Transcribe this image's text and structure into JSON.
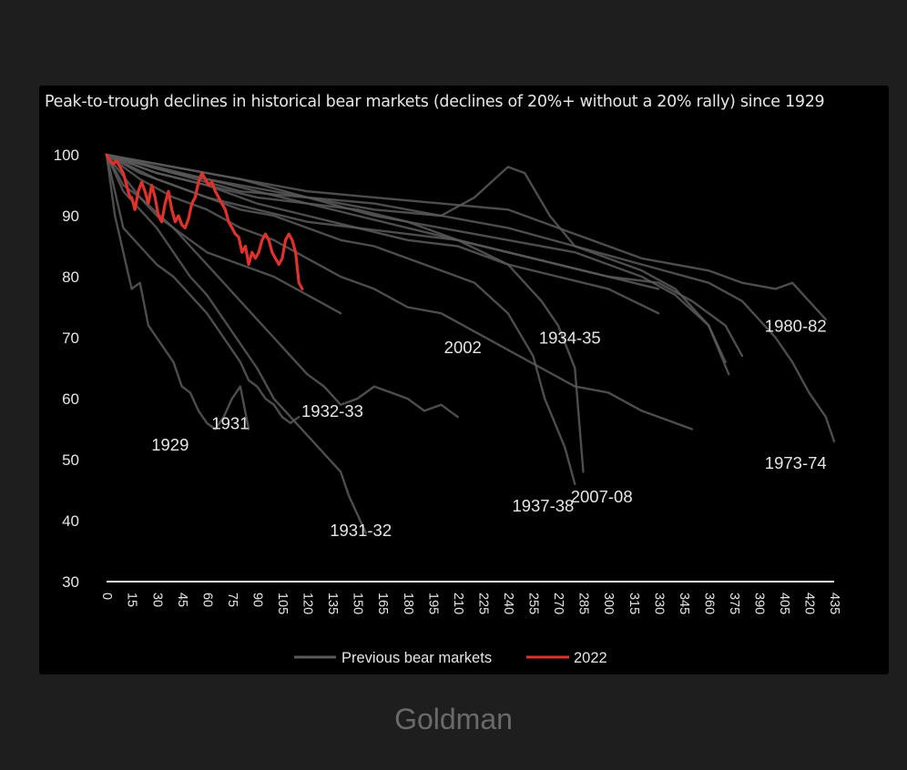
{
  "source": "Goldman",
  "chart_data": {
    "type": "line",
    "title": "Peak-to-trough declines in historical bear markets (declines of 20%+ without a 20% rally) since 1929",
    "xlabel": "",
    "ylabel": "",
    "ylim": [
      30,
      100
    ],
    "xlim": [
      0,
      435
    ],
    "grid": false,
    "legend_position": "bottom-center",
    "y_ticks": [
      "100",
      "90",
      "80",
      "70",
      "60",
      "50",
      "40",
      "30"
    ],
    "x_ticks": [
      "0",
      "15",
      "30",
      "45",
      "60",
      "75",
      "90",
      "105",
      "120",
      "135",
      "150",
      "165",
      "180",
      "195",
      "210",
      "225",
      "240",
      "255",
      "270",
      "285",
      "300",
      "315",
      "330",
      "345",
      "360",
      "375",
      "390",
      "405",
      "420",
      "435"
    ],
    "legend": [
      {
        "label": "Previous bear markets",
        "color": "#5a5a5a"
      },
      {
        "label": "2022",
        "color": "#e0312a"
      }
    ],
    "series": [
      {
        "name": "1929",
        "color": "#5a5a5a",
        "label_pos": [
          38,
          51.5
        ],
        "x": [
          0,
          5,
          10,
          15,
          20,
          25,
          30,
          35,
          40,
          45,
          50,
          55,
          60,
          65,
          70,
          75,
          80,
          85
        ],
        "y": [
          100,
          90,
          84,
          78,
          79,
          72,
          70,
          68,
          66,
          62,
          61,
          58,
          56,
          55,
          57,
          60,
          62,
          55
        ]
      },
      {
        "name": "1931",
        "color": "#5a5a5a",
        "label_pos": [
          74,
          55
        ],
        "x": [
          0,
          10,
          20,
          30,
          40,
          50,
          60,
          65,
          70,
          75,
          80,
          85,
          90,
          95,
          100,
          105,
          110,
          115
        ],
        "y": [
          100,
          88,
          85,
          82,
          80,
          77,
          74,
          72,
          70,
          68,
          66,
          63,
          62,
          60,
          59,
          57,
          56,
          57
        ]
      },
      {
        "name": "1932-33",
        "color": "#5a5a5a",
        "label_pos": [
          135,
          57
        ],
        "x": [
          0,
          10,
          20,
          30,
          40,
          50,
          60,
          70,
          80,
          90,
          100,
          110,
          120,
          130,
          140,
          150,
          160,
          170,
          180,
          190,
          200,
          210
        ],
        "y": [
          100,
          95,
          93,
          90,
          88,
          85,
          82,
          79,
          76,
          73,
          70,
          67,
          64,
          62,
          59,
          60,
          62,
          61,
          60,
          58,
          59,
          57
        ]
      },
      {
        "name": "1931-32",
        "color": "#5a5a5a",
        "label_pos": [
          152,
          37.5
        ],
        "x": [
          0,
          10,
          20,
          30,
          40,
          50,
          60,
          70,
          80,
          90,
          100,
          110,
          120,
          130,
          140,
          145,
          150,
          155
        ],
        "y": [
          100,
          94,
          91,
          88,
          84,
          80,
          77,
          73,
          69,
          65,
          60,
          57,
          54,
          51,
          48,
          44,
          41,
          38
        ]
      },
      {
        "name": "2002",
        "color": "#5a5a5a",
        "label_pos": [
          213,
          67.5
        ],
        "x": [
          0,
          20,
          40,
          60,
          80,
          100,
          120,
          140,
          160,
          180,
          200,
          220,
          240,
          260,
          280,
          300,
          320,
          340,
          350
        ],
        "y": [
          100,
          96,
          93,
          91,
          88,
          86,
          83,
          80,
          78,
          75,
          74,
          71,
          68,
          65,
          62,
          61,
          58,
          56,
          55
        ]
      },
      {
        "name": "1934-35",
        "color": "#5a5a5a",
        "label_pos": [
          277,
          69
        ],
        "x": [
          0,
          30,
          60,
          90,
          120,
          150,
          180,
          210,
          240,
          270,
          300,
          330,
          350,
          370,
          380
        ],
        "y": [
          100,
          96,
          93,
          91,
          89,
          88,
          87,
          86,
          84,
          82,
          80,
          79,
          76,
          72,
          67
        ]
      },
      {
        "name": "1937-38",
        "color": "#5a5a5a",
        "label_pos": [
          261,
          41.5
        ],
        "x": [
          0,
          20,
          40,
          60,
          80,
          100,
          120,
          140,
          160,
          180,
          200,
          220,
          240,
          255,
          262,
          268,
          274,
          280
        ],
        "y": [
          100,
          97,
          95,
          93,
          91,
          90,
          88,
          86,
          85,
          83,
          81,
          79,
          74,
          67,
          60,
          56,
          52,
          46
        ]
      },
      {
        "name": "2007-08",
        "color": "#5a5a5a",
        "label_pos": [
          296,
          43
        ],
        "x": [
          0,
          30,
          60,
          90,
          120,
          150,
          180,
          210,
          240,
          260,
          270,
          280,
          285
        ],
        "y": [
          100,
          97,
          95,
          93,
          92,
          90,
          88,
          86,
          82,
          76,
          72,
          65,
          48
        ]
      },
      {
        "name": "1973-74",
        "color": "#5a5a5a",
        "label_pos": [
          412,
          48.5
        ],
        "x": [
          0,
          40,
          80,
          120,
          160,
          200,
          240,
          280,
          320,
          360,
          380,
          400,
          410,
          420,
          430,
          435
        ],
        "y": [
          100,
          98,
          96,
          93,
          92,
          90,
          88,
          85,
          82,
          79,
          76,
          70,
          66,
          61,
          57,
          53
        ]
      },
      {
        "name": "1980-82",
        "color": "#5a5a5a",
        "label_pos": [
          412,
          71
        ],
        "x": [
          0,
          40,
          80,
          120,
          160,
          200,
          240,
          280,
          320,
          360,
          380,
          400,
          410,
          420,
          430
        ],
        "y": [
          100,
          98,
          96,
          94,
          93,
          92,
          91,
          87,
          83,
          81,
          79,
          78,
          79,
          76,
          73
        ]
      },
      {
        "name": "",
        "color": "#5a5a5a",
        "x": [
          0,
          40,
          80,
          120,
          160,
          200,
          220,
          240,
          250,
          265,
          280,
          300,
          320,
          340,
          360,
          372
        ],
        "y": [
          100,
          97,
          95,
          93,
          91,
          90,
          93,
          98,
          97,
          90,
          85,
          83,
          81,
          78,
          72,
          64
        ]
      },
      {
        "name": "",
        "color": "#5a5a5a",
        "x": [
          0,
          40,
          80,
          120,
          160,
          200,
          240,
          280,
          300,
          320,
          340,
          360,
          370
        ],
        "y": [
          100,
          97,
          94,
          93,
          90,
          88,
          86,
          84,
          82,
          80,
          77,
          72,
          66
        ]
      },
      {
        "name": "",
        "color": "#5a5a5a",
        "x": [
          0,
          30,
          60,
          90,
          120,
          150,
          180,
          210,
          240,
          270,
          300,
          330
        ],
        "y": [
          100,
          97,
          95,
          92,
          90,
          88,
          86,
          85,
          82,
          80,
          78,
          74
        ]
      },
      {
        "name": "",
        "color": "#5a5a5a",
        "x": [
          0,
          30,
          60,
          90,
          120,
          150,
          180,
          210,
          240,
          270,
          300,
          330
        ],
        "y": [
          100,
          98,
          96,
          94,
          92,
          91,
          89,
          86,
          84,
          82,
          80,
          78
        ]
      },
      {
        "name": "",
        "color": "#5a5a5a",
        "x": [
          0,
          20,
          40,
          60,
          80,
          100,
          120,
          140
        ],
        "y": [
          100,
          93,
          88,
          84,
          82,
          80,
          77,
          74
        ]
      },
      {
        "name": "2022",
        "color": "#e0312a",
        "x": [
          0,
          2,
          4,
          6,
          8,
          10,
          12,
          14,
          15,
          17,
          19,
          21,
          23,
          25,
          27,
          29,
          31,
          33,
          35,
          37,
          39,
          41,
          43,
          45,
          47,
          49,
          51,
          53,
          55,
          57,
          59,
          61,
          63,
          65,
          67,
          69,
          71,
          73,
          75,
          77,
          79,
          81,
          83,
          85,
          87,
          89,
          91,
          93,
          95,
          97,
          99,
          101,
          103,
          105,
          107,
          109,
          111,
          113,
          115,
          117
        ],
        "y": [
          100,
          99,
          98.5,
          99,
          98,
          97,
          95,
          93,
          93,
          91,
          94,
          95.5,
          94,
          92,
          95,
          93,
          90,
          89,
          92,
          94,
          91,
          89,
          90,
          88.5,
          88,
          89.5,
          92,
          93,
          95.5,
          97,
          96,
          95,
          95.5,
          94,
          93,
          92,
          91,
          89,
          88,
          87,
          86.5,
          84,
          85,
          82,
          84,
          83,
          84,
          86,
          87,
          86,
          84,
          83,
          82,
          83,
          86,
          87,
          86,
          84,
          79,
          78
        ]
      }
    ]
  }
}
